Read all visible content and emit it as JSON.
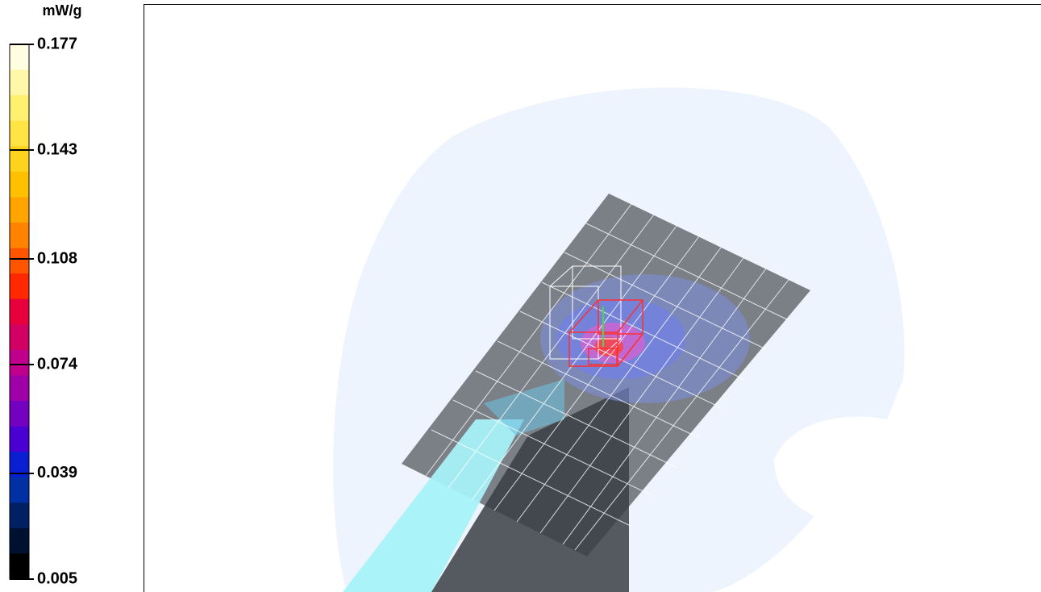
{
  "colorbar": {
    "unit": "mW/g",
    "ylim": [
      0.005,
      0.177
    ],
    "ticks": [
      0.177,
      0.143,
      0.108,
      0.074,
      0.039,
      0.005
    ],
    "colors": [
      "#fffde2",
      "#fff8a8",
      "#fff070",
      "#ffe444",
      "#ffd21e",
      "#ffc000",
      "#ffa400",
      "#ff8200",
      "#ff5400",
      "#ff2800",
      "#e8003c",
      "#d20062",
      "#c0008c",
      "#a000a8",
      "#7400c2",
      "#4a00d2",
      "#0a1ed2",
      "#0030a4",
      "#002064",
      "#001030",
      "#000000"
    ]
  }
}
